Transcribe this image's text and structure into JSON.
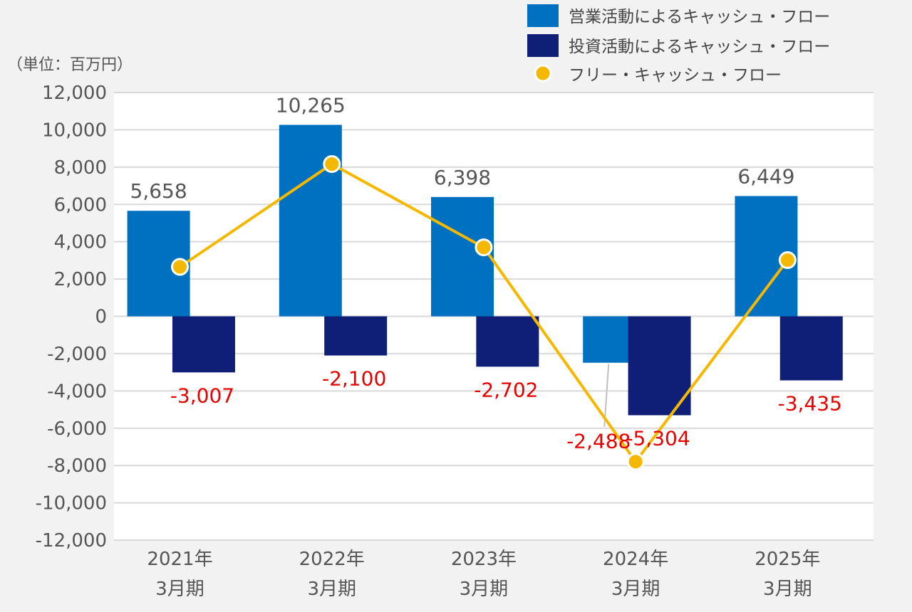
{
  "chart_data": {
    "type": "bar",
    "unit_label": "（単位：百万円）",
    "categories": [
      {
        "year": "2021年",
        "period": "3月期"
      },
      {
        "year": "2022年",
        "period": "3月期"
      },
      {
        "year": "2023年",
        "period": "3月期"
      },
      {
        "year": "2024年",
        "period": "3月期"
      },
      {
        "year": "2025年",
        "period": "3月期"
      }
    ],
    "ylim": [
      -12000,
      12000
    ],
    "yticks": [
      12000,
      10000,
      8000,
      6000,
      4000,
      2000,
      0,
      -2000,
      -4000,
      -6000,
      -8000,
      -10000,
      -12000
    ],
    "ytick_labels": [
      "12,000",
      "10,000",
      "8,000",
      "6,000",
      "4,000",
      "2,000",
      "0",
      "-2,000",
      "-4,000",
      "-6,000",
      "-8,000",
      "-10,000",
      "-12,000"
    ],
    "grid": true,
    "series": [
      {
        "name": "営業活動によるキャッシュ・フロー",
        "kind": "bar",
        "color": "#0070c0",
        "values": [
          5658,
          10265,
          6398,
          -2488,
          6449
        ],
        "labels": [
          "5,658",
          "10,265",
          "6,398",
          "-2,488",
          "6,449"
        ]
      },
      {
        "name": "投資活動によるキャッシュ・フロー",
        "kind": "bar",
        "color": "#0f1f78",
        "values": [
          -3007,
          -2100,
          -2702,
          -5304,
          -3435
        ],
        "labels": [
          "-3,007",
          "-2,100",
          "-2,702",
          "-5,304",
          "-3,435"
        ]
      },
      {
        "name": "フリー・キャッシュ・フロー",
        "kind": "line",
        "color": "#f5b800",
        "values": [
          2651,
          8165,
          3696,
          -7792,
          3014
        ]
      }
    ],
    "positive_label_color": "#555555",
    "negative_label_color": "#e60000",
    "legend_position": "top-right"
  }
}
